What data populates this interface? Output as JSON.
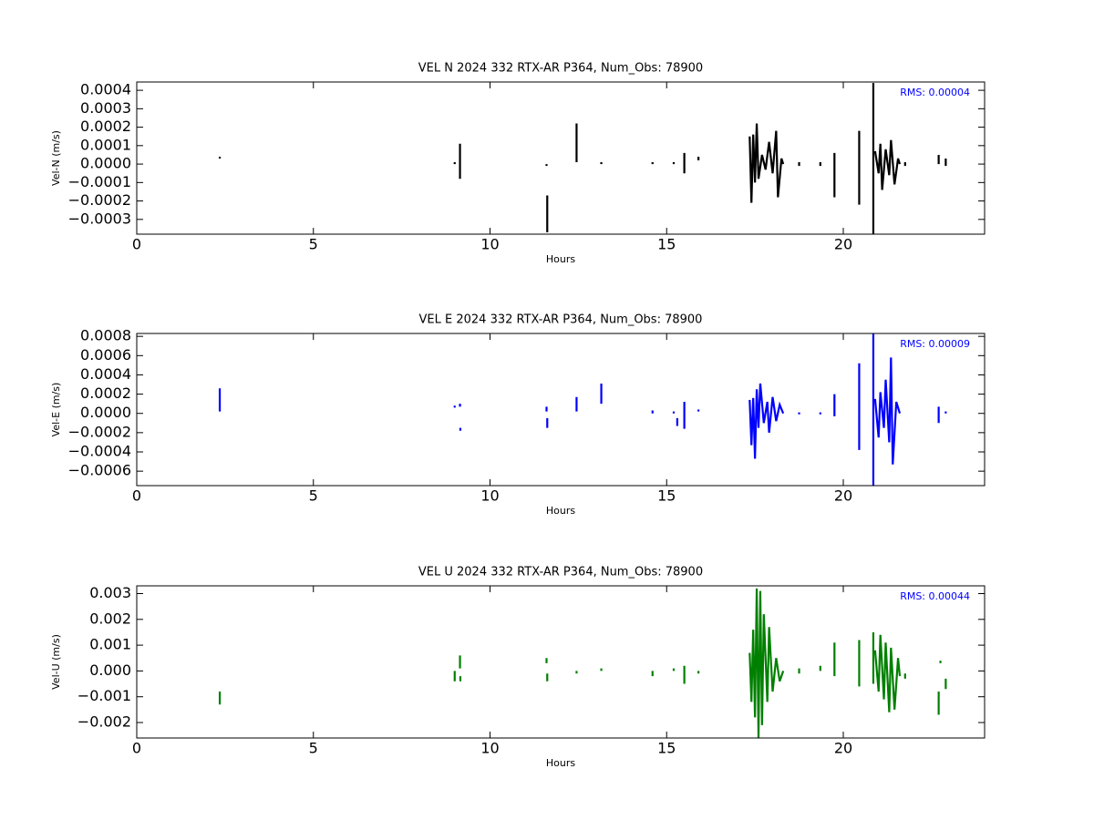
{
  "chart_data": [
    {
      "type": "line",
      "title": "VEL N 2024 332 RTX-AR  P364, Num_Obs: 78900",
      "xlabel": "Hours",
      "ylabel": "Vel-N (m/s)",
      "annotation": "RMS:  0.00004",
      "annotation_color": "#0000ff",
      "color": "#000000",
      "x": [
        2.35,
        2.35,
        2.35,
        9.0,
        9.0,
        9.0,
        9.15,
        9.15,
        9.15,
        11.6,
        11.6,
        11.6,
        11.62,
        11.62,
        11.62,
        12.45,
        12.45,
        12.45,
        13.15,
        13.15,
        13.15,
        14.6,
        14.6,
        14.6,
        15.2,
        15.2,
        15.2,
        15.5,
        15.5,
        15.5,
        15.9,
        15.9,
        15.9,
        17.35,
        17.4,
        17.45,
        17.5,
        17.55,
        17.6,
        17.7,
        17.8,
        17.9,
        18.0,
        18.1,
        18.15,
        18.25,
        18.3,
        18.3,
        18.75,
        18.75,
        18.75,
        19.35,
        19.35,
        19.35,
        19.75,
        19.75,
        19.75,
        20.45,
        20.45,
        20.45,
        20.85,
        20.85,
        20.85,
        20.9,
        21.0,
        21.05,
        21.1,
        21.2,
        21.3,
        21.35,
        21.45,
        21.55,
        21.6,
        21.6,
        21.75,
        21.75,
        21.75,
        22.7,
        22.7,
        22.7,
        22.9,
        22.9
      ],
      "values": [
        3e-05,
        4e-05,
        null,
        1e-05,
        0.0,
        null,
        0.00011,
        -8e-05,
        null,
        -1e-05,
        0.0,
        null,
        -0.00017,
        -0.00037,
        null,
        0.00022,
        1e-05,
        null,
        1e-05,
        0.0,
        null,
        1e-05,
        0.0,
        null,
        1e-05,
        0.0,
        null,
        6e-05,
        -5e-05,
        null,
        4e-05,
        2e-05,
        null,
        0.00015,
        -0.00021,
        0.00016,
        -0.0001,
        0.00022,
        -8e-05,
        5e-05,
        -3e-05,
        0.00012,
        -5e-05,
        0.00018,
        -0.00018,
        3e-05,
        0.0,
        null,
        1e-05,
        -1e-05,
        null,
        1e-05,
        -1e-05,
        null,
        6e-05,
        -0.00018,
        null,
        0.00018,
        -0.00022,
        null,
        0.00044,
        -0.00038,
        null,
        7e-05,
        -5e-05,
        0.00011,
        -0.00014,
        8e-05,
        -6e-05,
        0.00013,
        -0.00011,
        3e-05,
        0.0,
        null,
        1e-05,
        -1e-05,
        null,
        5e-05,
        0.0,
        null,
        3e-05,
        -1e-05
      ],
      "xlim": [
        0,
        24
      ],
      "xticks": [
        0,
        5,
        10,
        15,
        20
      ],
      "ylim": [
        -0.00038,
        0.000445
      ],
      "yticks": [
        {
          "value": -0.0003,
          "label": "−0.0003"
        },
        {
          "value": -0.0002,
          "label": "−0.0002"
        },
        {
          "value": -0.0001,
          "label": "−0.0001"
        },
        {
          "value": 0,
          "label": "0.0000"
        },
        {
          "value": 0.0001,
          "label": "0.0001"
        },
        {
          "value": 0.0002,
          "label": "0.0002"
        },
        {
          "value": 0.0003,
          "label": "0.0003"
        },
        {
          "value": 0.0004,
          "label": "0.0004"
        }
      ]
    },
    {
      "type": "line",
      "title": "VEL E 2024 332 RTX-AR  P364, Num_Obs: 78900",
      "xlabel": "Hours",
      "ylabel": "Vel-E (m/s)",
      "annotation": "RMS:  0.00009",
      "annotation_color": "#0000ff",
      "color": "#0000ff",
      "x": [
        2.35,
        2.35,
        2.35,
        9.0,
        9.0,
        9.0,
        9.15,
        9.15,
        9.15,
        9.16,
        9.16,
        9.16,
        11.6,
        11.6,
        11.6,
        11.62,
        11.62,
        11.62,
        12.45,
        12.45,
        12.45,
        13.15,
        13.15,
        13.15,
        14.6,
        14.6,
        14.6,
        15.2,
        15.2,
        15.2,
        15.3,
        15.3,
        15.3,
        15.5,
        15.5,
        15.5,
        15.9,
        15.9,
        15.9,
        17.35,
        17.4,
        17.45,
        17.5,
        17.55,
        17.6,
        17.65,
        17.75,
        17.85,
        17.9,
        18.0,
        18.1,
        18.2,
        18.3,
        18.3,
        18.75,
        18.75,
        18.75,
        19.35,
        19.35,
        19.35,
        19.75,
        19.75,
        19.75,
        20.45,
        20.45,
        20.45,
        20.85,
        20.85,
        20.85,
        20.9,
        21.0,
        21.05,
        21.15,
        21.2,
        21.3,
        21.35,
        21.4,
        21.5,
        21.6,
        21.6,
        22.7,
        22.7,
        22.7,
        22.9,
        22.9
      ],
      "values": [
        0.00026,
        2e-05,
        null,
        8e-05,
        6e-05,
        null,
        0.0001,
        7e-05,
        null,
        -0.00015,
        -0.00018,
        null,
        7e-05,
        2e-05,
        null,
        -5e-05,
        -0.00015,
        null,
        0.00017,
        2e-05,
        null,
        0.00031,
        0.0001,
        null,
        3e-05,
        0.0,
        null,
        2e-05,
        0.0,
        null,
        -5e-05,
        -0.00013,
        null,
        0.00012,
        -0.00016,
        null,
        4e-05,
        2e-05,
        null,
        0.00014,
        -0.00033,
        0.00016,
        -0.00047,
        0.00025,
        -0.00015,
        0.00031,
        -0.0001,
        0.00012,
        -0.0002,
        0.00017,
        -8e-05,
        9e-05,
        0.0,
        null,
        1e-05,
        -1e-05,
        null,
        1e-05,
        -1e-05,
        null,
        0.0002,
        -3e-05,
        null,
        0.00052,
        -0.00038,
        null,
        0.00083,
        -0.00075,
        null,
        0.00015,
        -0.00025,
        0.00022,
        -0.00015,
        0.00035,
        -0.0003,
        0.00058,
        -0.00053,
        0.00012,
        0.0,
        null,
        7e-05,
        -0.0001,
        null,
        2e-05,
        0.0
      ],
      "xlim": [
        0,
        24
      ],
      "xticks": [
        0,
        5,
        10,
        15,
        20
      ],
      "ylim": [
        -0.00075,
        0.00083
      ],
      "yticks": [
        {
          "value": -0.0006,
          "label": "−0.0006"
        },
        {
          "value": -0.0004,
          "label": "−0.0004"
        },
        {
          "value": -0.0002,
          "label": "−0.0002"
        },
        {
          "value": 0,
          "label": "0.0000"
        },
        {
          "value": 0.0002,
          "label": "0.0002"
        },
        {
          "value": 0.0004,
          "label": "0.0004"
        },
        {
          "value": 0.0006,
          "label": "0.0006"
        },
        {
          "value": 0.0008,
          "label": "0.0008"
        }
      ]
    },
    {
      "type": "line",
      "title": "VEL U 2024 332 RTX-AR  P364, Num_Obs: 78900",
      "xlabel": "Hours",
      "ylabel": "Vel-U (m/s)",
      "annotation": "RMS:  0.00044",
      "annotation_color": "#0000ff",
      "color": "#008000",
      "x": [
        2.35,
        2.35,
        2.35,
        9.0,
        9.0,
        9.0,
        9.15,
        9.15,
        9.15,
        9.16,
        9.16,
        9.16,
        11.6,
        11.6,
        11.6,
        11.62,
        11.62,
        11.62,
        12.45,
        12.45,
        12.45,
        13.15,
        13.15,
        13.15,
        14.6,
        14.6,
        14.6,
        15.2,
        15.2,
        15.2,
        15.5,
        15.5,
        15.5,
        15.9,
        15.9,
        15.9,
        17.35,
        17.4,
        17.45,
        17.5,
        17.55,
        17.6,
        17.65,
        17.7,
        17.75,
        17.85,
        17.9,
        18.0,
        18.1,
        18.2,
        18.3,
        18.3,
        18.75,
        18.75,
        18.75,
        19.35,
        19.35,
        19.35,
        19.75,
        19.75,
        19.75,
        20.45,
        20.45,
        20.45,
        20.85,
        20.85,
        20.85,
        20.9,
        21.0,
        21.05,
        21.15,
        21.2,
        21.3,
        21.35,
        21.45,
        21.55,
        21.6,
        21.6,
        21.75,
        21.75,
        21.75,
        22.7,
        22.7,
        22.7,
        22.75,
        22.75,
        22.75,
        22.9,
        22.9
      ],
      "values": [
        -0.0008,
        -0.0013,
        null,
        0.0,
        -0.0004,
        null,
        0.0006,
        0.0001,
        null,
        -0.0002,
        -0.0004,
        null,
        0.0005,
        0.0003,
        null,
        -0.0001,
        -0.0004,
        null,
        0.0,
        -0.0001,
        null,
        0.0001,
        0.0,
        null,
        0.0,
        -0.0002,
        null,
        0.0001,
        0.0,
        null,
        0.0002,
        -0.0005,
        null,
        0.0,
        -0.0001,
        null,
        0.0007,
        -0.0012,
        0.0016,
        -0.0018,
        0.0032,
        -0.0026,
        0.0031,
        -0.0021,
        0.0022,
        -0.0012,
        0.0017,
        -0.0008,
        0.0005,
        -0.0004,
        0.0,
        null,
        0.0001,
        -0.0001,
        null,
        0.0002,
        0.0,
        null,
        0.0011,
        -0.0002,
        null,
        0.0012,
        -0.0006,
        null,
        0.0015,
        -0.0005,
        null,
        0.0008,
        -0.0008,
        0.0014,
        -0.0011,
        0.0011,
        -0.0016,
        0.0009,
        -0.0015,
        0.0005,
        -0.0002,
        null,
        -0.0001,
        -0.0003,
        null,
        -0.0008,
        -0.0017,
        null,
        0.0004,
        0.0003,
        null,
        -0.0003,
        -0.0007
      ],
      "xlim": [
        0,
        24
      ],
      "xticks": [
        0,
        5,
        10,
        15,
        20
      ],
      "ylim": [
        -0.0026,
        0.0033
      ],
      "yticks": [
        {
          "value": -0.002,
          "label": "−0.002"
        },
        {
          "value": -0.001,
          "label": "−0.001"
        },
        {
          "value": 0,
          "label": "0.000"
        },
        {
          "value": 0.001,
          "label": "0.001"
        },
        {
          "value": 0.002,
          "label": "0.002"
        },
        {
          "value": 0.003,
          "label": "0.003"
        }
      ]
    }
  ]
}
